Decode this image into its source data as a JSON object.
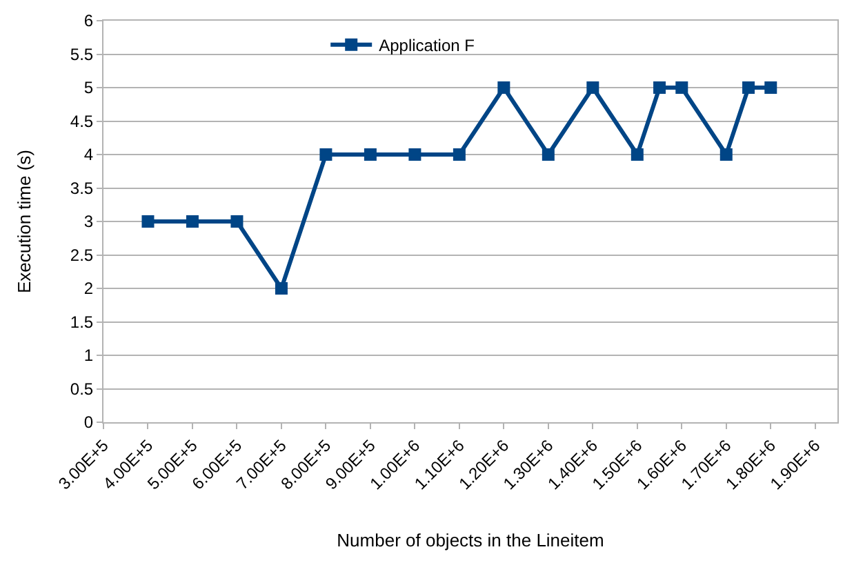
{
  "chart_data": {
    "type": "line",
    "xlabel": "Number of objects in the Lineitem",
    "ylabel": "Execution time (s)",
    "x": [
      400000,
      500000,
      600000,
      700000,
      800000,
      900000,
      1000000,
      1100000,
      1200000,
      1300000,
      1400000,
      1500000,
      1550000,
      1600000,
      1700000,
      1750000,
      1800000
    ],
    "series": [
      {
        "name": "Application F",
        "color": "#004586",
        "values": [
          3,
          3,
          3,
          2,
          4,
          4,
          4,
          4,
          5,
          4,
          5,
          4,
          5,
          5,
          4,
          5,
          5
        ]
      }
    ],
    "xlim": [
      300000,
      1950000
    ],
    "xticks": [
      {
        "value": 300000,
        "label": "3.00E+5"
      },
      {
        "value": 400000,
        "label": "4.00E+5"
      },
      {
        "value": 500000,
        "label": "5.00E+5"
      },
      {
        "value": 600000,
        "label": "6.00E+5"
      },
      {
        "value": 700000,
        "label": "7.00E+5"
      },
      {
        "value": 800000,
        "label": "8.00E+5"
      },
      {
        "value": 900000,
        "label": "9.00E+5"
      },
      {
        "value": 1000000,
        "label": "1.00E+6"
      },
      {
        "value": 1100000,
        "label": "1.10E+6"
      },
      {
        "value": 1200000,
        "label": "1.20E+6"
      },
      {
        "value": 1300000,
        "label": "1.30E+6"
      },
      {
        "value": 1400000,
        "label": "1.40E+6"
      },
      {
        "value": 1500000,
        "label": "1.50E+6"
      },
      {
        "value": 1600000,
        "label": "1.60E+6"
      },
      {
        "value": 1700000,
        "label": "1.70E+6"
      },
      {
        "value": 1800000,
        "label": "1.80E+6"
      },
      {
        "value": 1900000,
        "label": "1.90E+6"
      }
    ],
    "ylim": [
      0,
      6
    ],
    "yticks": [
      0,
      0.5,
      1,
      1.5,
      2,
      2.5,
      3,
      3.5,
      4,
      4.5,
      5,
      5.5,
      6
    ],
    "grid": "y",
    "legend": "top",
    "marker": "square",
    "line_style": "solid"
  }
}
